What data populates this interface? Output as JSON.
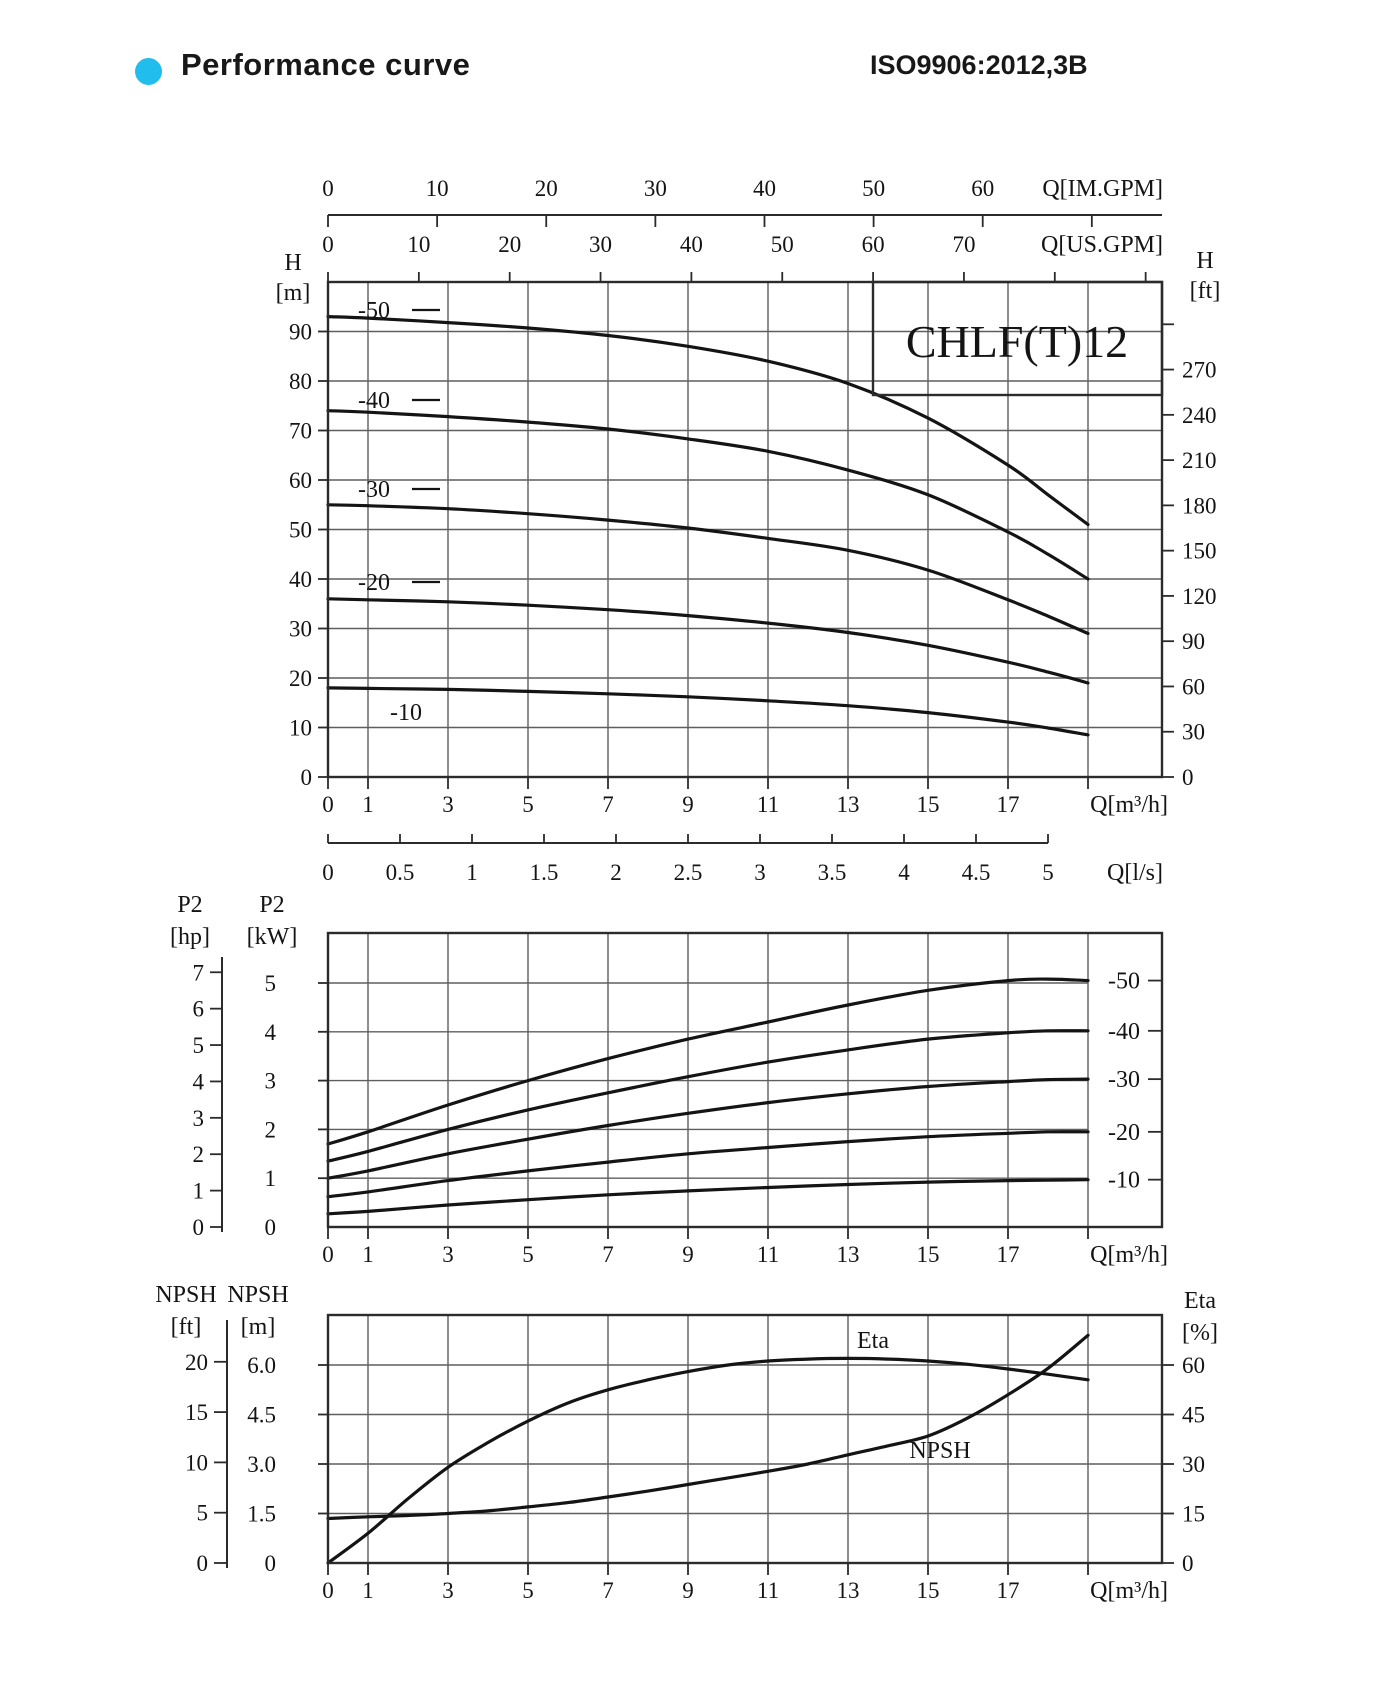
{
  "header": {
    "title": "Performance curve",
    "standard": "ISO9906:2012,3B",
    "bullet_color": "#21bdec"
  },
  "model": "CHLF(T)12",
  "colors": {
    "curve": "#141414",
    "grid": "#5f5f5f",
    "text": "#141414",
    "accent": "#21bdec"
  },
  "chart_data": {
    "head": {
      "type": "line",
      "title": "CHLF(T)12",
      "xlabel": "Q[m³/h]",
      "xlim": [
        0,
        20.85
      ],
      "ylim_m": [
        0,
        100
      ],
      "x": [
        0,
        1,
        3,
        5,
        7,
        9,
        11,
        13,
        15,
        17,
        18,
        19
      ],
      "series": [
        {
          "name": "-50",
          "values": [
            93,
            92.7,
            91.8,
            90.7,
            89.2,
            87,
            84,
            79.5,
            72.5,
            63,
            57,
            51
          ]
        },
        {
          "name": "-40",
          "values": [
            74,
            73.7,
            72.8,
            71.7,
            70.3,
            68.3,
            65.8,
            62,
            57,
            49.5,
            45,
            40
          ]
        },
        {
          "name": "-30",
          "values": [
            55,
            54.8,
            54.2,
            53.2,
            51.9,
            50.3,
            48.2,
            45.8,
            41.8,
            35.8,
            32.5,
            29
          ]
        },
        {
          "name": "-20",
          "values": [
            36,
            35.8,
            35.4,
            34.7,
            33.8,
            32.6,
            31.1,
            29.2,
            26.6,
            23.2,
            21.2,
            19
          ]
        },
        {
          "name": "-10",
          "values": [
            18,
            17.9,
            17.7,
            17.3,
            16.8,
            16.2,
            15.4,
            14.4,
            13,
            11.1,
            9.9,
            8.5
          ]
        }
      ],
      "x_tick_labels": [
        "0",
        "1",
        "3",
        "5",
        "7",
        "9",
        "11",
        "13",
        "15",
        "17"
      ],
      "x_tick_marks": [
        0,
        1,
        3,
        5,
        7,
        9,
        11,
        13,
        15,
        17,
        19
      ],
      "x_gridlines": [
        1,
        3,
        5,
        7,
        9,
        11,
        13,
        15,
        17,
        19
      ],
      "y_left": {
        "title": [
          "H",
          "[m]"
        ],
        "tick_labels": [
          "0",
          "10",
          "20",
          "30",
          "40",
          "50",
          "60",
          "70",
          "80",
          "90"
        ]
      },
      "y_right": {
        "title": [
          "H",
          "[ft]"
        ],
        "tick_labels": [
          "0",
          "30",
          "60",
          "90",
          "120",
          "150",
          "180",
          "210",
          "240",
          "270"
        ],
        "unlabeled_ticks": [
          300
        ]
      },
      "im_gpm": {
        "label": "Q[IM.GPM]",
        "tick_labels": [
          "0",
          "10",
          "20",
          "30",
          "40",
          "50",
          "60"
        ],
        "unlabeled_ticks": [
          70
        ]
      },
      "us_gpm": {
        "label": "Q[US.GPM]",
        "tick_labels": [
          "0",
          "10",
          "20",
          "30",
          "40",
          "50",
          "60",
          "70"
        ],
        "unlabeled_ticks": [
          80,
          90
        ]
      },
      "ls": {
        "label": "Q[l/s]",
        "tick_labels": [
          "0",
          "0.5",
          "1",
          "1.5",
          "2",
          "2.5",
          "3",
          "3.5",
          "4",
          "4.5",
          "5"
        ]
      }
    },
    "power": {
      "type": "line",
      "xlabel": "Q[m³/h]",
      "ylim_kw": [
        0,
        6.02
      ],
      "x": [
        0,
        1,
        3,
        5,
        7,
        9,
        11,
        13,
        15,
        17,
        18,
        19
      ],
      "series": [
        {
          "name": "-50",
          "values": [
            1.7,
            1.95,
            2.5,
            3.0,
            3.45,
            3.85,
            4.2,
            4.55,
            4.85,
            5.05,
            5.08,
            5.05
          ]
        },
        {
          "name": "-40",
          "values": [
            1.35,
            1.55,
            2.0,
            2.4,
            2.75,
            3.08,
            3.38,
            3.63,
            3.85,
            3.98,
            4.02,
            4.02
          ]
        },
        {
          "name": "-30",
          "values": [
            1.0,
            1.15,
            1.5,
            1.8,
            2.08,
            2.33,
            2.55,
            2.73,
            2.88,
            2.98,
            3.02,
            3.03
          ]
        },
        {
          "name": "-20",
          "values": [
            0.62,
            0.72,
            0.95,
            1.15,
            1.33,
            1.5,
            1.63,
            1.75,
            1.85,
            1.92,
            1.95,
            1.95
          ]
        },
        {
          "name": "-10",
          "values": [
            0.27,
            0.32,
            0.45,
            0.56,
            0.66,
            0.74,
            0.81,
            0.87,
            0.92,
            0.95,
            0.96,
            0.97
          ]
        }
      ],
      "x_tick_labels": [
        "0",
        "1",
        "3",
        "5",
        "7",
        "9",
        "11",
        "13",
        "15",
        "17"
      ],
      "x_tick_marks": [
        0,
        1,
        3,
        5,
        7,
        9,
        11,
        13,
        15,
        17,
        19
      ],
      "x_gridlines": [
        1,
        3,
        5,
        7,
        9,
        11,
        13,
        15,
        17,
        19
      ],
      "y_left_kw": {
        "title": [
          "P2",
          "[kW]"
        ],
        "tick_labels": [
          "0",
          "1",
          "2",
          "3",
          "4",
          "5"
        ]
      },
      "y_left_hp": {
        "title": [
          "P2",
          "[hp]"
        ],
        "tick_labels": [
          "0",
          "1",
          "2",
          "3",
          "4",
          "5",
          "6",
          "7"
        ]
      }
    },
    "npsh": {
      "type": "line",
      "xlabel": "Q[m³/h]",
      "ylim_m": [
        0,
        7.5
      ],
      "ylim_eta": [
        0,
        75
      ],
      "x": [
        0,
        1,
        2,
        3,
        4,
        5,
        6,
        7,
        8,
        9,
        10,
        11,
        12,
        13,
        14,
        15,
        16,
        17,
        18,
        19
      ],
      "series": [
        {
          "name": "Eta",
          "axis": "eta",
          "values": [
            0,
            9,
            19.5,
            29,
            36.5,
            43,
            48.5,
            52.5,
            55.5,
            58,
            60,
            61.2,
            61.8,
            62,
            61.8,
            61.2,
            60.2,
            58.8,
            57.2,
            55.5
          ]
        },
        {
          "name": "NPSH",
          "axis": "m",
          "values": [
            1.35,
            1.4,
            1.44,
            1.5,
            1.58,
            1.7,
            1.83,
            2.0,
            2.18,
            2.38,
            2.58,
            2.78,
            3.0,
            3.28,
            3.55,
            3.85,
            4.4,
            5.1,
            5.9,
            6.9
          ]
        }
      ],
      "x_tick_labels": [
        "0",
        "1",
        "3",
        "5",
        "7",
        "9",
        "11",
        "13",
        "15",
        "17"
      ],
      "x_tick_marks": [
        0,
        1,
        3,
        5,
        7,
        9,
        11,
        13,
        15,
        17,
        19
      ],
      "x_gridlines": [
        1,
        3,
        5,
        7,
        9,
        11,
        13,
        15,
        17,
        19
      ],
      "y_left_m": {
        "title": [
          "NPSH",
          "[m]"
        ],
        "tick_labels": [
          "0",
          "1.5",
          "3.0",
          "4.5",
          "6.0"
        ]
      },
      "y_left_ft": {
        "title": [
          "NPSH",
          "[ft]"
        ],
        "tick_labels": [
          "0",
          "5",
          "10",
          "15",
          "20"
        ]
      },
      "y_right_eta": {
        "title": [
          "Eta",
          "[%]"
        ],
        "tick_labels": [
          "0",
          "15",
          "30",
          "45",
          "60"
        ]
      }
    }
  }
}
